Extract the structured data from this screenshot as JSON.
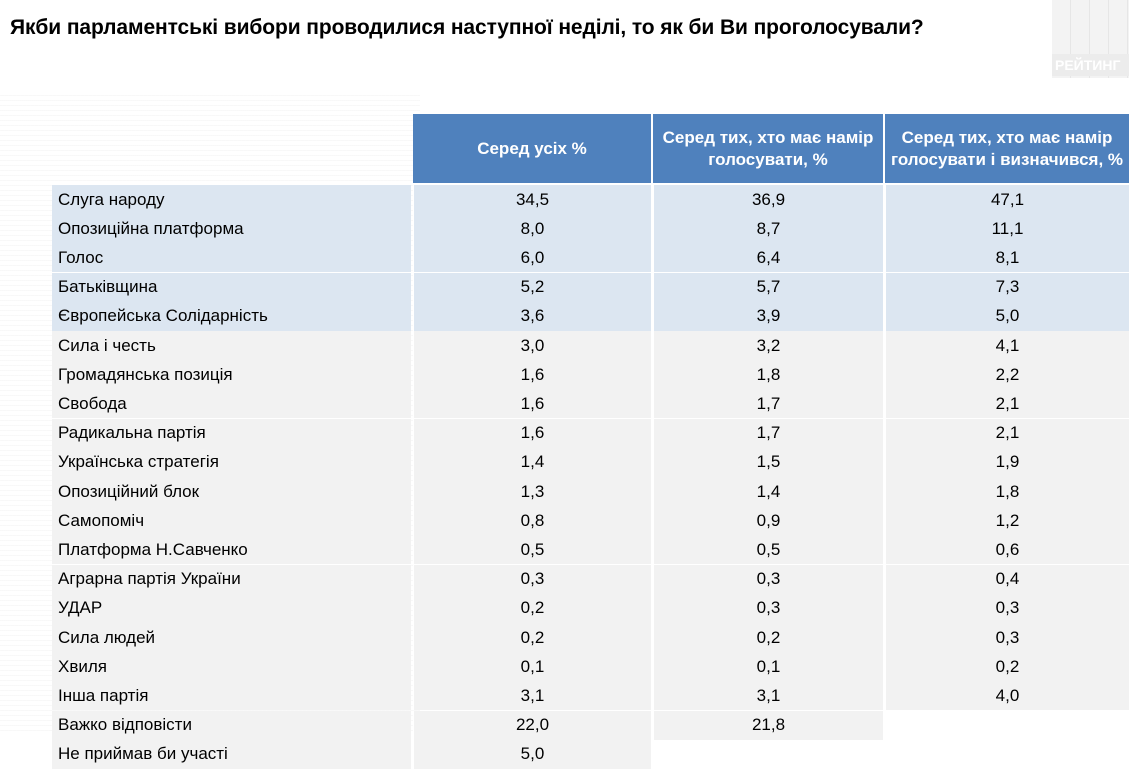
{
  "title": "Якби парламентські вибори проводилися наступної неділі, то як би Ви проголосували?",
  "brand": {
    "label": "РЕЙТИНГ"
  },
  "table": {
    "headers": [
      "Серед усіх %",
      "Серед тих, хто має намір голосувати, %",
      "Серед тих, хто має намір голосувати і визначився, %"
    ],
    "rows": [
      {
        "name": "Слуга народу",
        "all": "34,5",
        "intend": "36,9",
        "decided": "47,1"
      },
      {
        "name": "Опозиційна платформа",
        "all": "8,0",
        "intend": "8,7",
        "decided": "11,1"
      },
      {
        "name": "Голос",
        "all": "6,0",
        "intend": "6,4",
        "decided": "8,1"
      },
      {
        "name": "Батьківщина",
        "all": "5,2",
        "intend": "5,7",
        "decided": "7,3"
      },
      {
        "name": "Європейська Солідарність",
        "all": "3,6",
        "intend": "3,9",
        "decided": "5,0"
      },
      {
        "name": "Сила і честь",
        "all": "3,0",
        "intend": "3,2",
        "decided": "4,1"
      },
      {
        "name": "Громадянська позиція",
        "all": "1,6",
        "intend": "1,8",
        "decided": "2,2"
      },
      {
        "name": "Свобода",
        "all": "1,6",
        "intend": "1,7",
        "decided": "2,1"
      },
      {
        "name": "Радикальна партія",
        "all": "1,6",
        "intend": "1,7",
        "decided": "2,1"
      },
      {
        "name": "Українська стратегія",
        "all": "1,4",
        "intend": "1,5",
        "decided": "1,9"
      },
      {
        "name": "Опозиційний блок",
        "all": "1,3",
        "intend": "1,4",
        "decided": "1,8"
      },
      {
        "name": "Самопоміч",
        "all": "0,8",
        "intend": "0,9",
        "decided": "1,2"
      },
      {
        "name": "Платформа Н.Савченко",
        "all": "0,5",
        "intend": "0,5",
        "decided": "0,6"
      },
      {
        "name": "Аграрна партія України",
        "all": "0,3",
        "intend": "0,3",
        "decided": "0,4"
      },
      {
        "name": "УДАР",
        "all": "0,2",
        "intend": "0,3",
        "decided": "0,3"
      },
      {
        "name": "Сила людей",
        "all": "0,2",
        "intend": "0,2",
        "decided": "0,3"
      },
      {
        "name": "Хвиля",
        "all": "0,1",
        "intend": "0,1",
        "decided": "0,2"
      },
      {
        "name": "Інша партія",
        "all": "3,1",
        "intend": "3,1",
        "decided": "4,0"
      },
      {
        "name": "Важко відповісти",
        "all": "22,0",
        "intend": "21,8",
        "decided": null
      },
      {
        "name": "Не приймав би участі",
        "all": "5,0",
        "intend": null,
        "decided": null
      }
    ]
  },
  "colors": {
    "header_bg": "#4f81bd",
    "highlight_row_bg": "#dce6f1",
    "row_bg": "#f2f2f2"
  }
}
